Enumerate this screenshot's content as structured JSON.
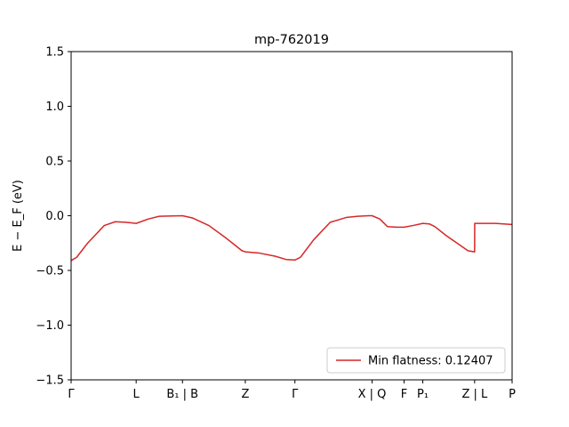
{
  "chart_data": {
    "type": "line",
    "title": "mp-762019",
    "xlabel": "",
    "ylabel": "E − E_F (eV)",
    "ylim": [
      -1.5,
      1.5
    ],
    "xlim": [
      0,
      4.0
    ],
    "yticks": [
      -1.5,
      -1.0,
      -0.5,
      0.0,
      0.5,
      1.0,
      1.5
    ],
    "ytick_labels": [
      "−1.5",
      "−1.0",
      "−0.5",
      "0.0",
      "0.5",
      "1.0",
      "1.5"
    ],
    "xticks": [
      {
        "x": 0.0,
        "label": "Γ"
      },
      {
        "x": 0.59,
        "label": "L"
      },
      {
        "x": 1.01,
        "label": "B₁ | B"
      },
      {
        "x": 1.58,
        "label": "Z"
      },
      {
        "x": 2.03,
        "label": "Γ"
      },
      {
        "x": 2.73,
        "label": "X | Q"
      },
      {
        "x": 3.02,
        "label": "F"
      },
      {
        "x": 3.19,
        "label": "P₁"
      },
      {
        "x": 3.66,
        "label": "Z | L"
      },
      {
        "x": 4.0,
        "label": "P"
      }
    ],
    "legend": {
      "position": "lower-right",
      "entries": [
        "Min flatness: 0.12407"
      ]
    },
    "grid": false,
    "series": [
      {
        "name": "Min flatness: 0.12407",
        "color": "#d62728",
        "x": [
          0.0,
          0.05,
          0.15,
          0.3,
          0.4,
          0.5,
          0.59,
          0.7,
          0.8,
          0.92,
          1.01,
          1.1,
          1.25,
          1.4,
          1.55,
          1.58,
          1.7,
          1.85,
          1.95,
          2.03,
          2.08,
          2.2,
          2.35,
          2.5,
          2.6,
          2.7,
          2.73,
          2.8,
          2.87,
          2.95,
          3.02,
          3.1,
          3.19,
          3.25,
          3.3,
          3.4,
          3.5,
          3.6,
          3.66,
          3.661,
          3.7,
          3.85,
          4.0
        ],
        "y": [
          -0.41,
          -0.38,
          -0.25,
          -0.09,
          -0.055,
          -0.06,
          -0.07,
          -0.03,
          -0.005,
          -0.002,
          0.0,
          -0.02,
          -0.09,
          -0.2,
          -0.32,
          -0.33,
          -0.34,
          -0.37,
          -0.4,
          -0.405,
          -0.38,
          -0.22,
          -0.06,
          -0.015,
          -0.005,
          0.0,
          0.0,
          -0.03,
          -0.1,
          -0.105,
          -0.105,
          -0.09,
          -0.07,
          -0.075,
          -0.1,
          -0.18,
          -0.25,
          -0.32,
          -0.33,
          -0.07,
          -0.07,
          -0.07,
          -0.08
        ]
      }
    ]
  }
}
